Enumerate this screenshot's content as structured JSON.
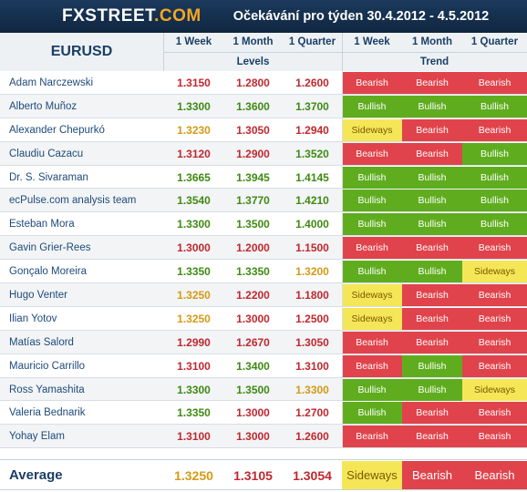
{
  "header": {
    "logo_prefix": "FX",
    "logo_suffix": "STREET",
    "logo_tld": ".COM",
    "title": "Očekávání pro týden 30.4.2012 - 4.5.2012"
  },
  "table": {
    "pair": "EURUSD",
    "columns": [
      "1 Week",
      "1 Month",
      "1 Quarter",
      "1 Week",
      "1 Month",
      "1 Quarter"
    ],
    "group_levels": "Levels",
    "group_trend": "Trend",
    "colors": {
      "bullish": "#5fad1f",
      "bearish": "#e0434b",
      "sideways": "#f5e657",
      "level_green": "#3f8a12",
      "level_red": "#c0282e",
      "level_orange": "#d59a14"
    },
    "rows": [
      {
        "name": "Adam Narczewski",
        "levels": [
          "1.3150",
          "1.2800",
          "1.2600"
        ],
        "level_tones": [
          "red",
          "red",
          "red"
        ],
        "trend": [
          "Bearish",
          "Bearish",
          "Bearish"
        ]
      },
      {
        "name": "Alberto Muñoz",
        "levels": [
          "1.3300",
          "1.3600",
          "1.3700"
        ],
        "level_tones": [
          "green",
          "green",
          "green"
        ],
        "trend": [
          "Bullish",
          "Bullish",
          "Bullish"
        ]
      },
      {
        "name": "Alexander Chepurkó",
        "levels": [
          "1.3230",
          "1.3050",
          "1.2940"
        ],
        "level_tones": [
          "orange",
          "red",
          "red"
        ],
        "trend": [
          "Sideways",
          "Bearish",
          "Bearish"
        ]
      },
      {
        "name": "Claudiu Cazacu",
        "levels": [
          "1.3120",
          "1.2900",
          "1.3520"
        ],
        "level_tones": [
          "red",
          "red",
          "green"
        ],
        "trend": [
          "Bearish",
          "Bearish",
          "Bullish"
        ]
      },
      {
        "name": "Dr. S. Sivaraman",
        "levels": [
          "1.3665",
          "1.3945",
          "1.4145"
        ],
        "level_tones": [
          "green",
          "green",
          "green"
        ],
        "trend": [
          "Bullish",
          "Bullish",
          "Bullish"
        ]
      },
      {
        "name": "ecPulse.com analysis team",
        "levels": [
          "1.3540",
          "1.3770",
          "1.4210"
        ],
        "level_tones": [
          "green",
          "green",
          "green"
        ],
        "trend": [
          "Bullish",
          "Bullish",
          "Bullish"
        ]
      },
      {
        "name": "Esteban Mora",
        "levels": [
          "1.3300",
          "1.3500",
          "1.4000"
        ],
        "level_tones": [
          "green",
          "green",
          "green"
        ],
        "trend": [
          "Bullish",
          "Bullish",
          "Bullish"
        ]
      },
      {
        "name": "Gavin Grier-Rees",
        "levels": [
          "1.3000",
          "1.2000",
          "1.1500"
        ],
        "level_tones": [
          "red",
          "red",
          "red"
        ],
        "trend": [
          "Bearish",
          "Bearish",
          "Bearish"
        ]
      },
      {
        "name": "Gonçalo Moreira",
        "levels": [
          "1.3350",
          "1.3350",
          "1.3200"
        ],
        "level_tones": [
          "green",
          "green",
          "orange"
        ],
        "trend": [
          "Bullish",
          "Bullish",
          "Sideways"
        ]
      },
      {
        "name": "Hugo Venter",
        "levels": [
          "1.3250",
          "1.2200",
          "1.1800"
        ],
        "level_tones": [
          "orange",
          "red",
          "red"
        ],
        "trend": [
          "Sideways",
          "Bearish",
          "Bearish"
        ]
      },
      {
        "name": "Ilian Yotov",
        "levels": [
          "1.3250",
          "1.3000",
          "1.2500"
        ],
        "level_tones": [
          "orange",
          "red",
          "red"
        ],
        "trend": [
          "Sideways",
          "Bearish",
          "Bearish"
        ]
      },
      {
        "name": "Matías Salord",
        "levels": [
          "1.2990",
          "1.2670",
          "1.3050"
        ],
        "level_tones": [
          "red",
          "red",
          "red"
        ],
        "trend": [
          "Bearish",
          "Bearish",
          "Bearish"
        ]
      },
      {
        "name": "Mauricio Carrillo",
        "levels": [
          "1.3100",
          "1.3400",
          "1.3100"
        ],
        "level_tones": [
          "red",
          "green",
          "red"
        ],
        "trend": [
          "Bearish",
          "Bullish",
          "Bearish"
        ]
      },
      {
        "name": "Ross Yamashita",
        "levels": [
          "1.3300",
          "1.3500",
          "1.3300"
        ],
        "level_tones": [
          "green",
          "green",
          "orange"
        ],
        "trend": [
          "Bullish",
          "Bullish",
          "Sideways"
        ]
      },
      {
        "name": "Valeria Bednarik",
        "levels": [
          "1.3350",
          "1.3000",
          "1.2700"
        ],
        "level_tones": [
          "green",
          "red",
          "red"
        ],
        "trend": [
          "Bullish",
          "Bearish",
          "Bearish"
        ]
      },
      {
        "name": "Yohay Elam",
        "levels": [
          "1.3100",
          "1.3000",
          "1.2600"
        ],
        "level_tones": [
          "red",
          "red",
          "red"
        ],
        "trend": [
          "Bearish",
          "Bearish",
          "Bearish"
        ]
      }
    ],
    "average": {
      "label": "Average",
      "levels": [
        "1.3250",
        "1.3105",
        "1.3054"
      ],
      "level_tones": [
        "orange",
        "red",
        "red"
      ],
      "trend": [
        "Sideways",
        "Bearish",
        "Bearish"
      ]
    }
  }
}
